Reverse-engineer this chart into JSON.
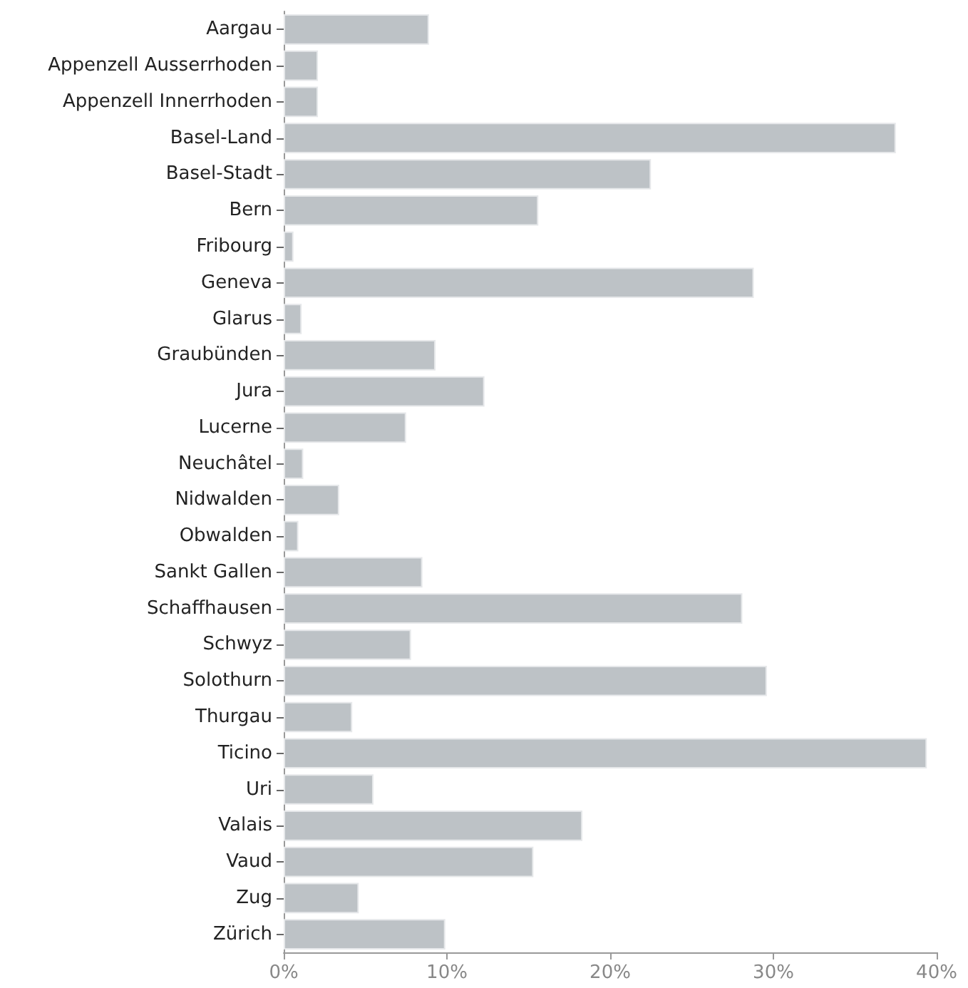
{
  "chart_data": {
    "type": "bar",
    "orientation": "horizontal",
    "categories": [
      "Aargau",
      "Appenzell Ausserrhoden",
      "Appenzell Innerrhoden",
      "Basel-Land",
      "Basel-Stadt",
      "Bern",
      "Fribourg",
      "Geneva",
      "Glarus",
      "Graubünden",
      "Jura",
      "Lucerne",
      "Neuchâtel",
      "Nidwalden",
      "Obwalden",
      "Sankt Gallen",
      "Schaffhausen",
      "Schwyz",
      "Solothurn",
      "Thurgau",
      "Ticino",
      "Uri",
      "Valais",
      "Vaud",
      "Zug",
      "Zürich"
    ],
    "values": [
      8.9,
      2.1,
      2.1,
      37.5,
      22.5,
      15.6,
      0.6,
      28.8,
      1.1,
      9.3,
      12.3,
      7.5,
      1.2,
      3.4,
      0.9,
      8.5,
      28.1,
      7.8,
      29.6,
      4.2,
      39.4,
      5.5,
      18.3,
      15.3,
      4.6,
      9.9
    ],
    "color": "#bdc2c6",
    "xlim": [
      0,
      40
    ],
    "xticks": [
      {
        "value": 0,
        "label": "0%"
      },
      {
        "value": 10,
        "label": "10%"
      },
      {
        "value": 20,
        "label": "20%"
      },
      {
        "value": 30,
        "label": "30%"
      },
      {
        "value": 40,
        "label": "40%"
      }
    ],
    "grid": false
  }
}
